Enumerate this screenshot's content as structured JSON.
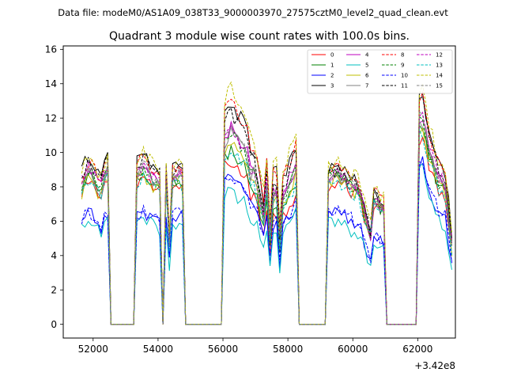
{
  "suptitle": "Data file: modeM0/AS1A09_038T33_9000003970_27575cztM0_level2_quad_clean.evt",
  "chart_data": {
    "type": "line",
    "title": "Quadrant 3 module wise count rates with 100.0s bins.",
    "xlabel": "",
    "ylabel": "",
    "x_offset_label": "+3.42e8",
    "xlim": [
      51080,
      63160
    ],
    "ylim": [
      -0.8,
      16.2
    ],
    "xticks": [
      52000,
      54000,
      56000,
      58000,
      60000,
      62000
    ],
    "xtick_labels": [
      "52000",
      "54000",
      "56000",
      "58000",
      "60000",
      "62000"
    ],
    "yticks": [
      0,
      2,
      4,
      6,
      8,
      10,
      12,
      14,
      16
    ],
    "ytick_labels": [
      "0",
      "2",
      "4",
      "6",
      "8",
      "10",
      "12",
      "14",
      "16"
    ],
    "segments": [
      {
        "start": 51650,
        "end": 52450
      },
      {
        "start": 53350,
        "end": 54050
      },
      {
        "start": 54250,
        "end": 54750
      },
      {
        "start": 56050,
        "end": 58250
      },
      {
        "start": 59250,
        "end": 60950
      },
      {
        "start": 62050,
        "end": 63050
      }
    ],
    "gaps": [
      {
        "start": 52550,
        "end": 53250
      },
      {
        "start": 54850,
        "end": 55950
      },
      {
        "start": 58350,
        "end": 59150
      },
      {
        "start": 61050,
        "end": 61950
      }
    ],
    "gap_value": 0,
    "bin_width": 100,
    "legend_position": "top-right",
    "series": [
      {
        "name": "0",
        "color": "#ff0000",
        "dash": false,
        "levels": [
          7.3,
          8.3,
          8.0,
          9.6,
          8.1,
          9.9,
          7.5,
          8.2,
          10.8,
          7.2
        ]
      },
      {
        "name": "1",
        "color": "#008000",
        "dash": false,
        "levels": [
          7.8,
          8.4,
          8.3,
          10.2,
          8.5,
          10.6,
          7.5,
          8.5,
          11.5,
          7.8
        ]
      },
      {
        "name": "2",
        "color": "#0000ff",
        "dash": false,
        "levels": [
          5.8,
          6.2,
          6.4,
          8.7,
          6.5,
          8.7,
          5.5,
          6.7,
          9.4,
          6.2
        ]
      },
      {
        "name": "3",
        "color": "#000000",
        "dash": false,
        "levels": [
          8.9,
          9.5,
          9.2,
          13.0,
          9.0,
          12.2,
          8.0,
          9.9,
          13.3,
          9.3
        ]
      },
      {
        "name": "4",
        "color": "#bf00bf",
        "dash": false,
        "levels": [
          8.3,
          8.7,
          8.7,
          11.5,
          8.7,
          11.2,
          7.6,
          9.0,
          12.0,
          8.5
        ]
      },
      {
        "name": "5",
        "color": "#00bfbf",
        "dash": false,
        "levels": [
          5.4,
          5.8,
          5.8,
          7.9,
          5.9,
          8.0,
          5.2,
          6.1,
          9.0,
          5.7
        ]
      },
      {
        "name": "6",
        "color": "#bfbf00",
        "dash": false,
        "levels": [
          7.7,
          8.3,
          8.2,
          10.7,
          8.2,
          10.5,
          7.5,
          8.4,
          11.3,
          7.8
        ]
      },
      {
        "name": "7",
        "color": "#808080",
        "dash": false,
        "levels": [
          7.9,
          8.5,
          8.5,
          11.2,
          8.3,
          10.9,
          7.6,
          8.7,
          11.6,
          8.2
        ]
      },
      {
        "name": "8",
        "color": "#ff0000",
        "dash": true,
        "levels": [
          8.5,
          9.3,
          9.0,
          13.0,
          9.1,
          12.0,
          8.0,
          9.6,
          13.1,
          9.0
        ]
      },
      {
        "name": "9",
        "color": "#008000",
        "dash": true,
        "levels": [
          8.0,
          8.6,
          8.4,
          11.1,
          8.5,
          10.8,
          7.7,
          8.8,
          11.8,
          8.2
        ]
      },
      {
        "name": "10",
        "color": "#0000ff",
        "dash": true,
        "levels": [
          6.0,
          6.3,
          6.5,
          8.9,
          6.6,
          8.6,
          5.7,
          6.8,
          9.6,
          6.5
        ]
      },
      {
        "name": "11",
        "color": "#000000",
        "dash": true,
        "levels": [
          8.6,
          9.3,
          9.0,
          12.4,
          8.9,
          11.8,
          7.9,
          9.6,
          12.8,
          9.0
        ]
      },
      {
        "name": "12",
        "color": "#bf00bf",
        "dash": true,
        "levels": [
          8.2,
          8.8,
          8.6,
          11.6,
          8.6,
          11.3,
          7.8,
          9.0,
          12.2,
          8.4
        ]
      },
      {
        "name": "13",
        "color": "#00bfbf",
        "dash": true,
        "levels": [
          7.6,
          8.2,
          8.0,
          10.3,
          8.0,
          10.0,
          7.3,
          8.2,
          11.0,
          7.6
        ]
      },
      {
        "name": "14",
        "color": "#bfbf00",
        "dash": true,
        "levels": [
          8.7,
          9.7,
          9.2,
          13.8,
          9.3,
          12.6,
          8.4,
          10.2,
          13.5,
          9.2
        ]
      },
      {
        "name": "15",
        "color": "#808080",
        "dash": true,
        "levels": [
          8.1,
          8.8,
          8.6,
          11.4,
          8.6,
          11.1,
          7.8,
          9.1,
          12.0,
          8.4
        ]
      }
    ]
  }
}
